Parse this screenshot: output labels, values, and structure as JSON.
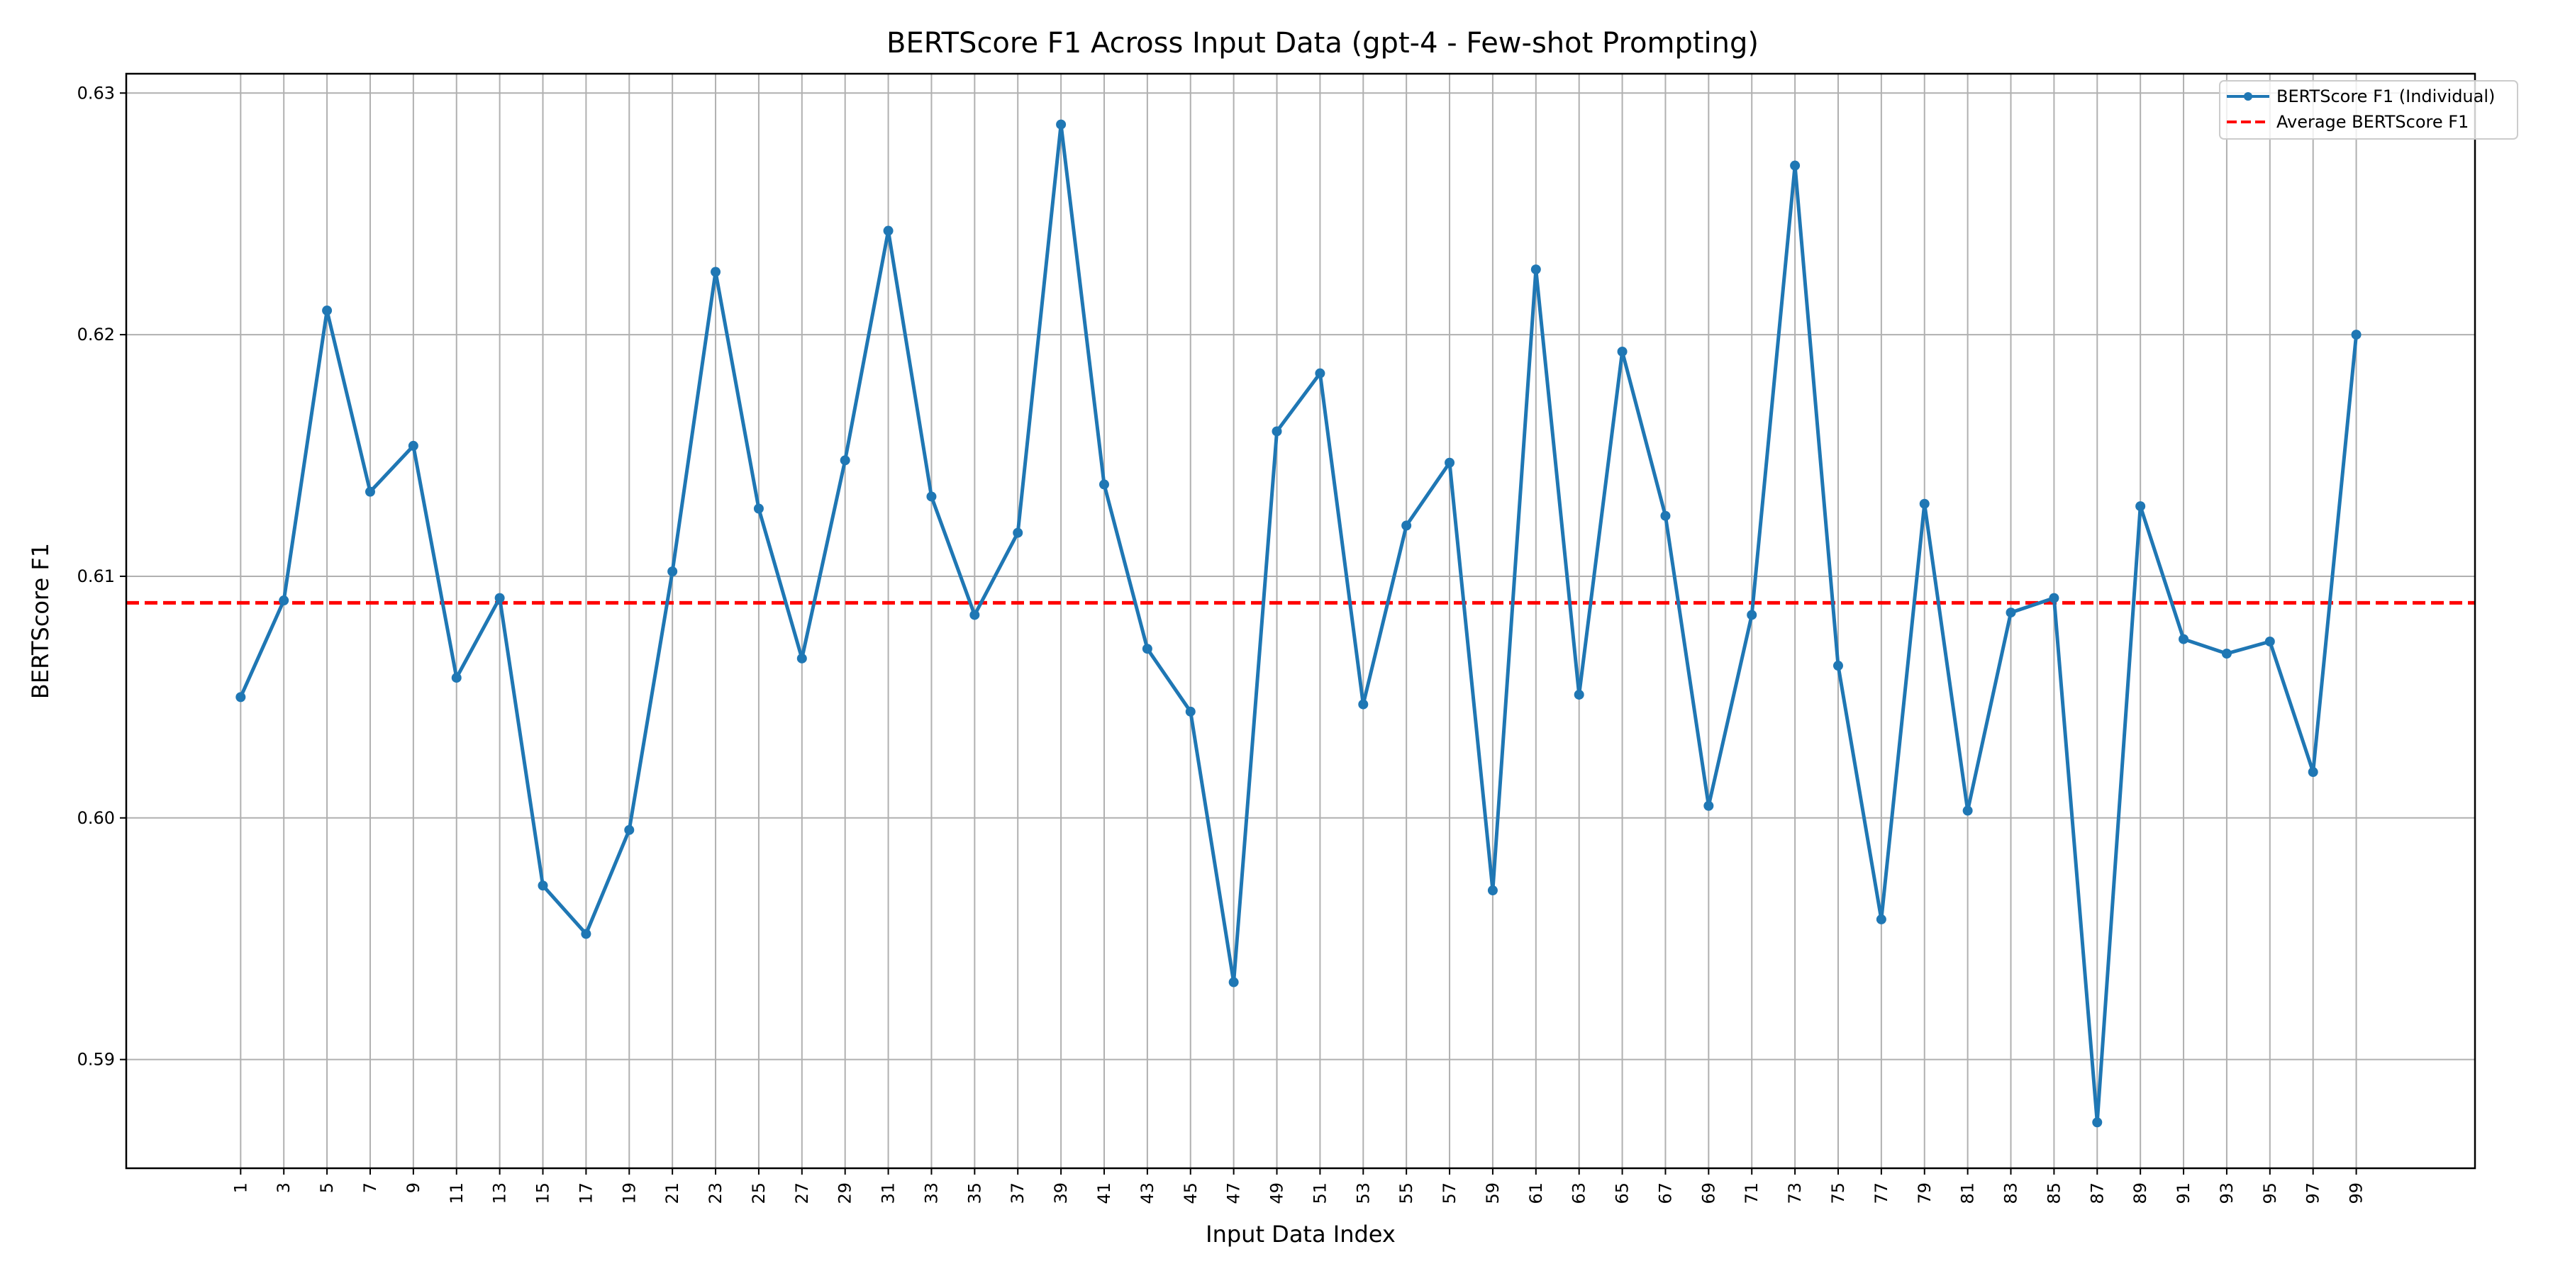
{
  "chart_data": {
    "type": "line",
    "title": "BERTScore F1 Across Input Data (gpt-4 - Few-shot Prompting)",
    "xlabel": "Input Data Index",
    "ylabel": "BERTScore F1",
    "x": [
      1,
      3,
      5,
      7,
      9,
      11,
      13,
      15,
      17,
      19,
      21,
      23,
      25,
      27,
      29,
      31,
      33,
      35,
      37,
      39,
      41,
      43,
      45,
      47,
      49,
      51,
      53,
      55,
      57,
      59,
      61,
      63,
      65,
      67,
      69,
      71,
      73,
      75,
      77,
      79,
      81,
      83,
      85,
      87,
      89,
      91,
      93,
      95,
      97,
      99
    ],
    "x_tick_labels": [
      "1",
      "3",
      "5",
      "7",
      "9",
      "11",
      "13",
      "15",
      "17",
      "19",
      "21",
      "23",
      "25",
      "27",
      "29",
      "31",
      "33",
      "35",
      "37",
      "39",
      "41",
      "43",
      "45",
      "47",
      "49",
      "51",
      "53",
      "55",
      "57",
      "59",
      "61",
      "63",
      "65",
      "67",
      "69",
      "71",
      "73",
      "75",
      "77",
      "79",
      "81",
      "83",
      "85",
      "87",
      "89",
      "91",
      "93",
      "95",
      "97",
      "99"
    ],
    "xlim": [
      -4.3,
      104.5
    ],
    "ylim": [
      0.5855,
      0.6308
    ],
    "y_ticks": [
      0.59,
      0.6,
      0.61,
      0.62,
      0.63
    ],
    "y_tick_labels": [
      "0.59",
      "0.60",
      "0.61",
      "0.62",
      "0.63"
    ],
    "grid": true,
    "legend_position": "top-right",
    "series": [
      {
        "name": "BERTScore F1 (Individual)",
        "color": "#1f77b4",
        "values": [
          0.605,
          0.609,
          0.621,
          0.6135,
          0.6154,
          0.6058,
          0.6091,
          0.5972,
          0.5952,
          0.5995,
          0.6102,
          0.6226,
          0.6128,
          0.6066,
          0.6148,
          0.6243,
          0.6133,
          0.6084,
          0.6118,
          0.6287,
          0.6138,
          0.607,
          0.6044,
          0.5932,
          0.616,
          0.6184,
          0.6047,
          0.6121,
          0.6147,
          0.597,
          0.6227,
          0.6051,
          0.6193,
          0.6125,
          0.6005,
          0.6084,
          0.627,
          0.6063,
          0.5958,
          0.613,
          0.6003,
          0.6085,
          0.6091,
          0.5874,
          0.6129,
          0.6074,
          0.6068,
          0.6073,
          0.6019,
          0.62
        ]
      }
    ],
    "average": {
      "name": "Average BERTScore F1",
      "color": "#ff0000",
      "value": 0.6089
    }
  }
}
